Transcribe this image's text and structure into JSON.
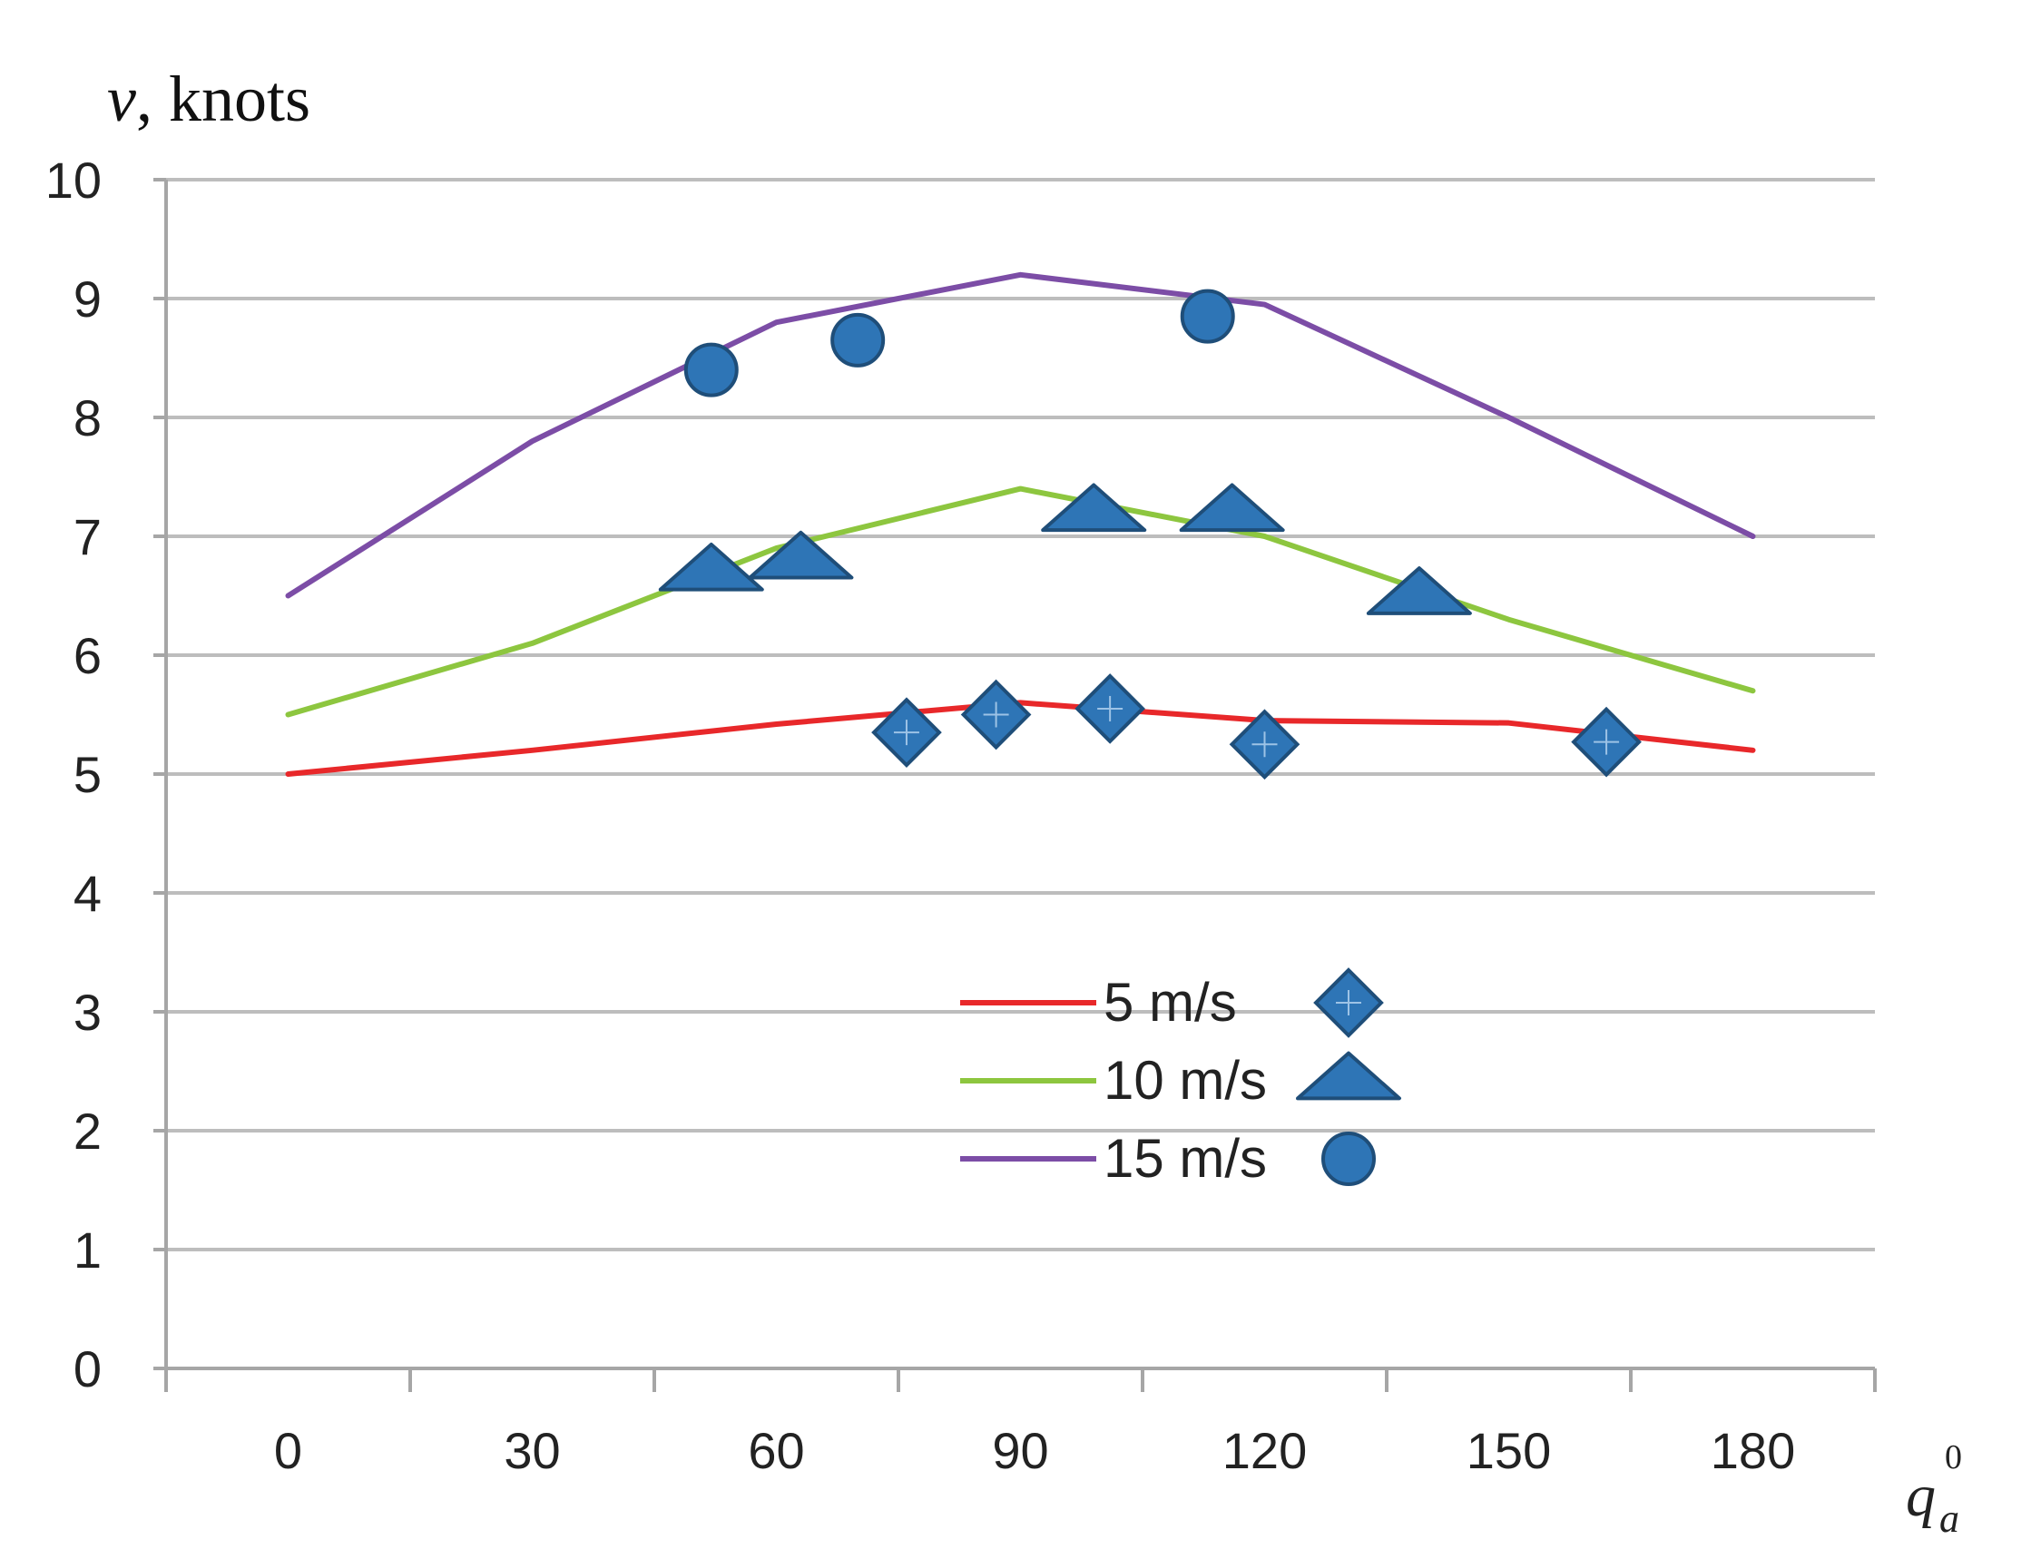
{
  "chart_data": {
    "type": "line",
    "ylabel_var": "v",
    "ylabel_unit": ", knots",
    "xlabel_var": "q",
    "xlabel_sub": "a",
    "xlabel_sup": "0",
    "ylim": [
      0,
      10
    ],
    "yticks": [
      0,
      1,
      2,
      3,
      4,
      5,
      6,
      7,
      8,
      9,
      10
    ],
    "xlim": [
      -15,
      195
    ],
    "xticks": [
      0,
      30,
      60,
      90,
      120,
      150,
      180
    ],
    "grid": true,
    "legend_position": "center",
    "series": [
      {
        "name": "5 m/s",
        "color": "#e8282a",
        "marker": "diamond",
        "line_x": [
          0,
          30,
          60,
          90,
          120,
          150,
          180
        ],
        "line_y": [
          5.0,
          5.2,
          5.42,
          5.6,
          5.45,
          5.43,
          5.2
        ],
        "points_x": [
          76,
          87,
          101,
          120,
          162
        ],
        "points_y": [
          5.35,
          5.5,
          5.55,
          5.25,
          5.27
        ]
      },
      {
        "name": "10 m/s",
        "color": "#8dc63f",
        "marker": "triangle",
        "line_x": [
          0,
          30,
          60,
          90,
          120,
          150,
          180
        ],
        "line_y": [
          5.5,
          6.1,
          6.9,
          7.4,
          7.0,
          6.3,
          5.7
        ],
        "points_x": [
          52,
          63,
          99,
          116,
          139
        ],
        "points_y": [
          6.7,
          6.8,
          7.2,
          7.2,
          6.5
        ]
      },
      {
        "name": "15 m/s",
        "color": "#7c4da6",
        "marker": "circle",
        "line_x": [
          0,
          30,
          60,
          90,
          120,
          150,
          180
        ],
        "line_y": [
          6.5,
          7.8,
          8.8,
          9.2,
          8.95,
          8.0,
          7.0
        ],
        "points_x": [
          52,
          70,
          113
        ],
        "points_y": [
          8.4,
          8.65,
          8.85
        ]
      }
    ],
    "marker_color": "#2e75b6"
  }
}
